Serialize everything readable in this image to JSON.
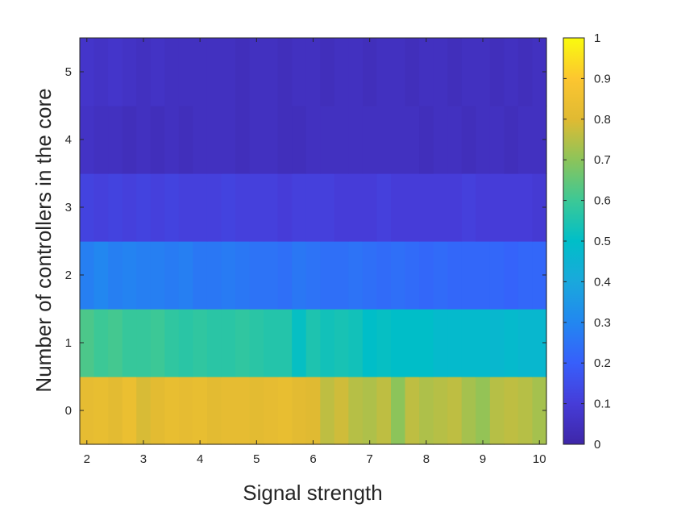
{
  "chart_data": {
    "type": "heatmap",
    "title": "",
    "xlabel": "Signal strength",
    "ylabel": "Number of controllers in the core",
    "x": [
      2.0,
      2.25,
      2.5,
      2.75,
      3.0,
      3.25,
      3.5,
      3.75,
      4.0,
      4.25,
      4.5,
      4.75,
      5.0,
      5.25,
      5.5,
      5.75,
      6.0,
      6.25,
      6.5,
      6.75,
      7.0,
      7.25,
      7.5,
      7.75,
      8.0,
      8.25,
      8.5,
      8.75,
      9.0,
      9.25,
      9.5,
      9.75,
      10.0
    ],
    "y": [
      0,
      1,
      2,
      3,
      4,
      5
    ],
    "xlim": [
      1.875,
      10.125
    ],
    "ylim": [
      -0.5,
      5.5
    ],
    "xticks": [
      "2",
      "3",
      "4",
      "5",
      "6",
      "7",
      "8",
      "9",
      "10"
    ],
    "yticks": [
      "0",
      "1",
      "2",
      "3",
      "4",
      "5"
    ],
    "z": [
      [
        0.82,
        0.83,
        0.81,
        0.84,
        0.79,
        0.81,
        0.83,
        0.82,
        0.83,
        0.81,
        0.82,
        0.82,
        0.81,
        0.82,
        0.83,
        0.81,
        0.8,
        0.76,
        0.78,
        0.75,
        0.74,
        0.76,
        0.7,
        0.76,
        0.74,
        0.75,
        0.76,
        0.73,
        0.71,
        0.75,
        0.76,
        0.75,
        0.73
      ],
      [
        0.62,
        0.6,
        0.61,
        0.59,
        0.59,
        0.6,
        0.58,
        0.57,
        0.58,
        0.57,
        0.57,
        0.58,
        0.57,
        0.56,
        0.56,
        0.51,
        0.55,
        0.53,
        0.54,
        0.53,
        0.5,
        0.51,
        0.5,
        0.5,
        0.5,
        0.48,
        0.48,
        0.48,
        0.48,
        0.47,
        0.48,
        0.47,
        0.47
      ],
      [
        0.28,
        0.3,
        0.28,
        0.29,
        0.28,
        0.28,
        0.27,
        0.28,
        0.26,
        0.26,
        0.27,
        0.26,
        0.25,
        0.25,
        0.24,
        0.26,
        0.25,
        0.24,
        0.24,
        0.25,
        0.24,
        0.23,
        0.24,
        0.23,
        0.22,
        0.23,
        0.22,
        0.22,
        0.22,
        0.22,
        0.21,
        0.22,
        0.22
      ],
      [
        0.12,
        0.11,
        0.12,
        0.11,
        0.12,
        0.11,
        0.12,
        0.11,
        0.11,
        0.11,
        0.12,
        0.11,
        0.11,
        0.11,
        0.1,
        0.11,
        0.11,
        0.11,
        0.1,
        0.1,
        0.1,
        0.11,
        0.1,
        0.1,
        0.1,
        0.1,
        0.1,
        0.11,
        0.1,
        0.1,
        0.1,
        0.1,
        0.09
      ],
      [
        0.06,
        0.05,
        0.05,
        0.04,
        0.05,
        0.04,
        0.05,
        0.04,
        0.05,
        0.05,
        0.05,
        0.04,
        0.05,
        0.05,
        0.04,
        0.04,
        0.05,
        0.05,
        0.05,
        0.05,
        0.05,
        0.05,
        0.05,
        0.05,
        0.04,
        0.05,
        0.05,
        0.04,
        0.05,
        0.05,
        0.04,
        0.05,
        0.05
      ],
      [
        0.07,
        0.06,
        0.07,
        0.06,
        0.05,
        0.06,
        0.05,
        0.05,
        0.05,
        0.05,
        0.05,
        0.04,
        0.05,
        0.05,
        0.04,
        0.05,
        0.05,
        0.04,
        0.05,
        0.05,
        0.04,
        0.05,
        0.05,
        0.04,
        0.05,
        0.05,
        0.04,
        0.05,
        0.05,
        0.04,
        0.05,
        0.04,
        0.05
      ]
    ],
    "colorbar": {
      "colormap": "parula",
      "clim": [
        0,
        1
      ],
      "ticks": [
        "0",
        "0.1",
        "0.2",
        "0.3",
        "0.4",
        "0.5",
        "0.6",
        "0.7",
        "0.8",
        "0.9",
        "1"
      ]
    },
    "grid": false,
    "legend": "none"
  }
}
